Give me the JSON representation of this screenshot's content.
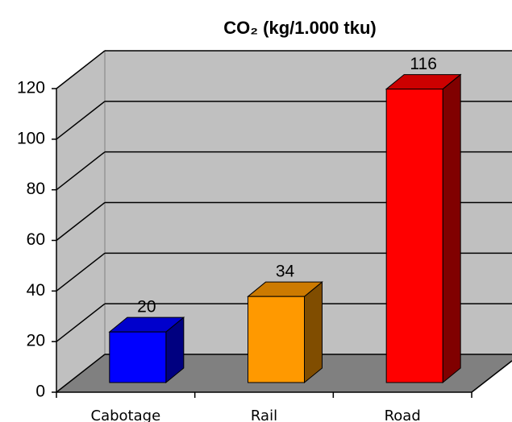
{
  "chart_data": {
    "type": "bar3d",
    "title": "CO₂ (kg/1.000 tku)",
    "categories": [
      "Cabotage",
      "Rail",
      "Road"
    ],
    "values": [
      20,
      34,
      116
    ],
    "colors": [
      "#0000ff",
      "#ff9900",
      "#ff0000"
    ],
    "ylim": [
      0,
      120
    ],
    "yticks": [
      0,
      20,
      40,
      60,
      80,
      100,
      120
    ],
    "grid": true
  }
}
